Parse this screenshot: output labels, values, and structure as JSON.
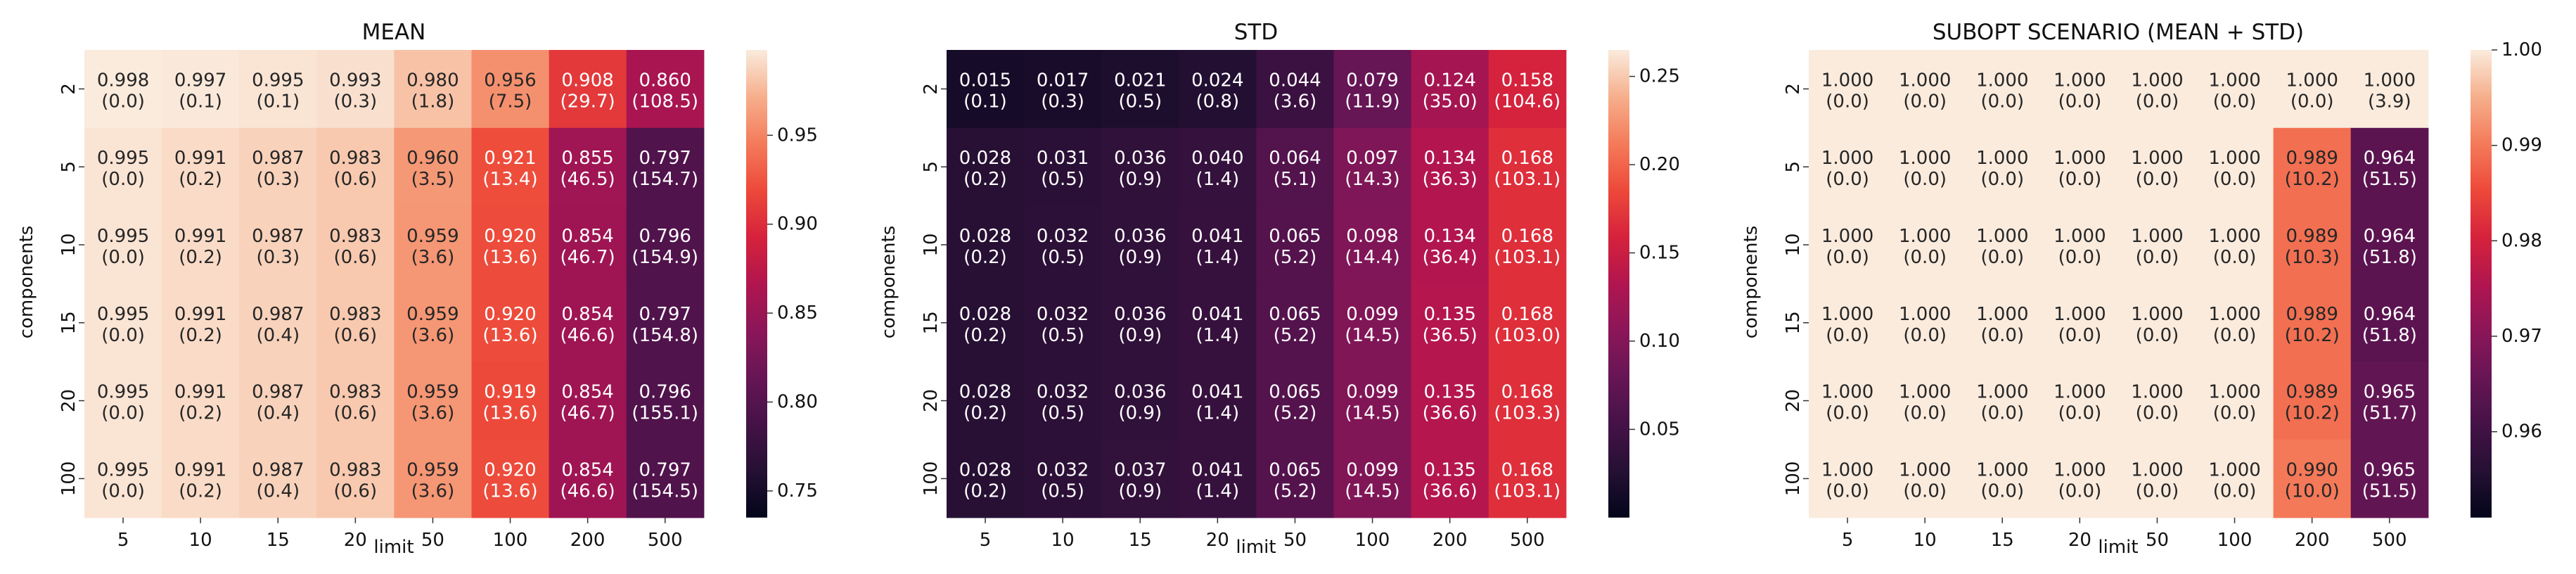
{
  "chart_data": [
    {
      "type": "heatmap",
      "title": "MEAN",
      "xlabel": "limit",
      "ylabel": "components",
      "x_categories": [
        "5",
        "10",
        "15",
        "20",
        "50",
        "100",
        "200",
        "500"
      ],
      "y_categories": [
        "2",
        "5",
        "10",
        "15",
        "20",
        "100"
      ],
      "values": [
        [
          0.998,
          0.997,
          0.995,
          0.993,
          0.98,
          0.956,
          0.908,
          0.86
        ],
        [
          0.995,
          0.991,
          0.987,
          0.983,
          0.96,
          0.921,
          0.855,
          0.797
        ],
        [
          0.995,
          0.991,
          0.987,
          0.983,
          0.959,
          0.92,
          0.854,
          0.796
        ],
        [
          0.995,
          0.991,
          0.987,
          0.983,
          0.959,
          0.92,
          0.854,
          0.797
        ],
        [
          0.995,
          0.991,
          0.987,
          0.983,
          0.959,
          0.919,
          0.854,
          0.796
        ],
        [
          0.995,
          0.991,
          0.987,
          0.983,
          0.959,
          0.92,
          0.854,
          0.797
        ]
      ],
      "annotations": [
        [
          "0.998\n(0.0)",
          "0.997\n(0.1)",
          "0.995\n(0.1)",
          "0.993\n(0.3)",
          "0.980\n(1.8)",
          "0.956\n(7.5)",
          "0.908\n(29.7)",
          "0.860\n(108.5)"
        ],
        [
          "0.995\n(0.0)",
          "0.991\n(0.2)",
          "0.987\n(0.3)",
          "0.983\n(0.6)",
          "0.960\n(3.5)",
          "0.921\n(13.4)",
          "0.855\n(46.5)",
          "0.797\n(154.7)"
        ],
        [
          "0.995\n(0.0)",
          "0.991\n(0.2)",
          "0.987\n(0.3)",
          "0.983\n(0.6)",
          "0.959\n(3.6)",
          "0.920\n(13.6)",
          "0.854\n(46.7)",
          "0.796\n(154.9)"
        ],
        [
          "0.995\n(0.0)",
          "0.991\n(0.2)",
          "0.987\n(0.4)",
          "0.983\n(0.6)",
          "0.959\n(3.6)",
          "0.920\n(13.6)",
          "0.854\n(46.6)",
          "0.797\n(154.8)"
        ],
        [
          "0.995\n(0.0)",
          "0.991\n(0.2)",
          "0.987\n(0.4)",
          "0.983\n(0.6)",
          "0.959\n(3.6)",
          "0.919\n(13.6)",
          "0.854\n(46.7)",
          "0.796\n(155.1)"
        ],
        [
          "0.995\n(0.0)",
          "0.991\n(0.2)",
          "0.987\n(0.4)",
          "0.983\n(0.6)",
          "0.959\n(3.6)",
          "0.920\n(13.6)",
          "0.854\n(46.6)",
          "0.797\n(154.5)"
        ]
      ],
      "colorbar": {
        "vmin": 0.735,
        "vmax": 0.998,
        "ticks": [
          0.75,
          0.8,
          0.85,
          0.9,
          0.95
        ],
        "tick_labels": [
          "0.75",
          "0.80",
          "0.85",
          "0.90",
          "0.95"
        ]
      },
      "colormap": "rocket"
    },
    {
      "type": "heatmap",
      "title": "STD",
      "xlabel": "limit",
      "ylabel": "components",
      "x_categories": [
        "5",
        "10",
        "15",
        "20",
        "50",
        "100",
        "200",
        "500"
      ],
      "y_categories": [
        "2",
        "5",
        "10",
        "15",
        "20",
        "100"
      ],
      "values": [
        [
          0.015,
          0.017,
          0.021,
          0.024,
          0.044,
          0.079,
          0.124,
          0.158
        ],
        [
          0.028,
          0.031,
          0.036,
          0.04,
          0.064,
          0.097,
          0.134,
          0.168
        ],
        [
          0.028,
          0.032,
          0.036,
          0.041,
          0.065,
          0.098,
          0.134,
          0.168
        ],
        [
          0.028,
          0.032,
          0.036,
          0.041,
          0.065,
          0.099,
          0.135,
          0.168
        ],
        [
          0.028,
          0.032,
          0.036,
          0.041,
          0.065,
          0.099,
          0.135,
          0.168
        ],
        [
          0.028,
          0.032,
          0.037,
          0.041,
          0.065,
          0.099,
          0.135,
          0.168
        ]
      ],
      "annotations": [
        [
          "0.015\n(0.1)",
          "0.017\n(0.3)",
          "0.021\n(0.5)",
          "0.024\n(0.8)",
          "0.044\n(3.6)",
          "0.079\n(11.9)",
          "0.124\n(35.0)",
          "0.158\n(104.6)"
        ],
        [
          "0.028\n(0.2)",
          "0.031\n(0.5)",
          "0.036\n(0.9)",
          "0.040\n(1.4)",
          "0.064\n(5.1)",
          "0.097\n(14.3)",
          "0.134\n(36.3)",
          "0.168\n(103.1)"
        ],
        [
          "0.028\n(0.2)",
          "0.032\n(0.5)",
          "0.036\n(0.9)",
          "0.041\n(1.4)",
          "0.065\n(5.2)",
          "0.098\n(14.4)",
          "0.134\n(36.4)",
          "0.168\n(103.1)"
        ],
        [
          "0.028\n(0.2)",
          "0.032\n(0.5)",
          "0.036\n(0.9)",
          "0.041\n(1.4)",
          "0.065\n(5.2)",
          "0.099\n(14.5)",
          "0.135\n(36.5)",
          "0.168\n(103.0)"
        ],
        [
          "0.028\n(0.2)",
          "0.032\n(0.5)",
          "0.036\n(0.9)",
          "0.041\n(1.4)",
          "0.065\n(5.2)",
          "0.099\n(14.5)",
          "0.135\n(36.6)",
          "0.168\n(103.3)"
        ],
        [
          "0.028\n(0.2)",
          "0.032\n(0.5)",
          "0.037\n(0.9)",
          "0.041\n(1.4)",
          "0.065\n(5.2)",
          "0.099\n(14.5)",
          "0.135\n(36.6)",
          "0.168\n(103.1)"
        ]
      ],
      "colorbar": {
        "vmin": 0.0,
        "vmax": 0.265,
        "ticks": [
          0.05,
          0.1,
          0.15,
          0.2,
          0.25
        ],
        "tick_labels": [
          "0.05",
          "0.10",
          "0.15",
          "0.20",
          "0.25"
        ]
      },
      "colormap": "rocket"
    },
    {
      "type": "heatmap",
      "title": "SUBOPT SCENARIO (MEAN + STD)",
      "xlabel": "limit",
      "ylabel": "components",
      "x_categories": [
        "5",
        "10",
        "15",
        "20",
        "50",
        "100",
        "200",
        "500"
      ],
      "y_categories": [
        "2",
        "5",
        "10",
        "15",
        "20",
        "100"
      ],
      "values": [
        [
          1.0,
          1.0,
          1.0,
          1.0,
          1.0,
          1.0,
          1.0,
          1.0
        ],
        [
          1.0,
          1.0,
          1.0,
          1.0,
          1.0,
          1.0,
          0.989,
          0.964
        ],
        [
          1.0,
          1.0,
          1.0,
          1.0,
          1.0,
          1.0,
          0.989,
          0.964
        ],
        [
          1.0,
          1.0,
          1.0,
          1.0,
          1.0,
          1.0,
          0.989,
          0.964
        ],
        [
          1.0,
          1.0,
          1.0,
          1.0,
          1.0,
          1.0,
          0.989,
          0.965
        ],
        [
          1.0,
          1.0,
          1.0,
          1.0,
          1.0,
          1.0,
          0.99,
          0.965
        ]
      ],
      "annotations": [
        [
          "1.000\n(0.0)",
          "1.000\n(0.0)",
          "1.000\n(0.0)",
          "1.000\n(0.0)",
          "1.000\n(0.0)",
          "1.000\n(0.0)",
          "1.000\n(0.0)",
          "1.000\n(3.9)"
        ],
        [
          "1.000\n(0.0)",
          "1.000\n(0.0)",
          "1.000\n(0.0)",
          "1.000\n(0.0)",
          "1.000\n(0.0)",
          "1.000\n(0.0)",
          "0.989\n(10.2)",
          "0.964\n(51.5)"
        ],
        [
          "1.000\n(0.0)",
          "1.000\n(0.0)",
          "1.000\n(0.0)",
          "1.000\n(0.0)",
          "1.000\n(0.0)",
          "1.000\n(0.0)",
          "0.989\n(10.3)",
          "0.964\n(51.8)"
        ],
        [
          "1.000\n(0.0)",
          "1.000\n(0.0)",
          "1.000\n(0.0)",
          "1.000\n(0.0)",
          "1.000\n(0.0)",
          "1.000\n(0.0)",
          "0.989\n(10.2)",
          "0.964\n(51.8)"
        ],
        [
          "1.000\n(0.0)",
          "1.000\n(0.0)",
          "1.000\n(0.0)",
          "1.000\n(0.0)",
          "1.000\n(0.0)",
          "1.000\n(0.0)",
          "0.989\n(10.2)",
          "0.965\n(51.7)"
        ],
        [
          "1.000\n(0.0)",
          "1.000\n(0.0)",
          "1.000\n(0.0)",
          "1.000\n(0.0)",
          "1.000\n(0.0)",
          "1.000\n(0.0)",
          "0.990\n(10.0)",
          "0.965\n(51.5)"
        ]
      ],
      "colorbar": {
        "vmin": 0.951,
        "vmax": 1.0,
        "ticks": [
          0.96,
          0.97,
          0.98,
          0.99,
          1.0
        ],
        "tick_labels": [
          "0.96",
          "0.97",
          "0.98",
          "0.99",
          "1.00"
        ]
      },
      "colormap": "rocket"
    }
  ]
}
